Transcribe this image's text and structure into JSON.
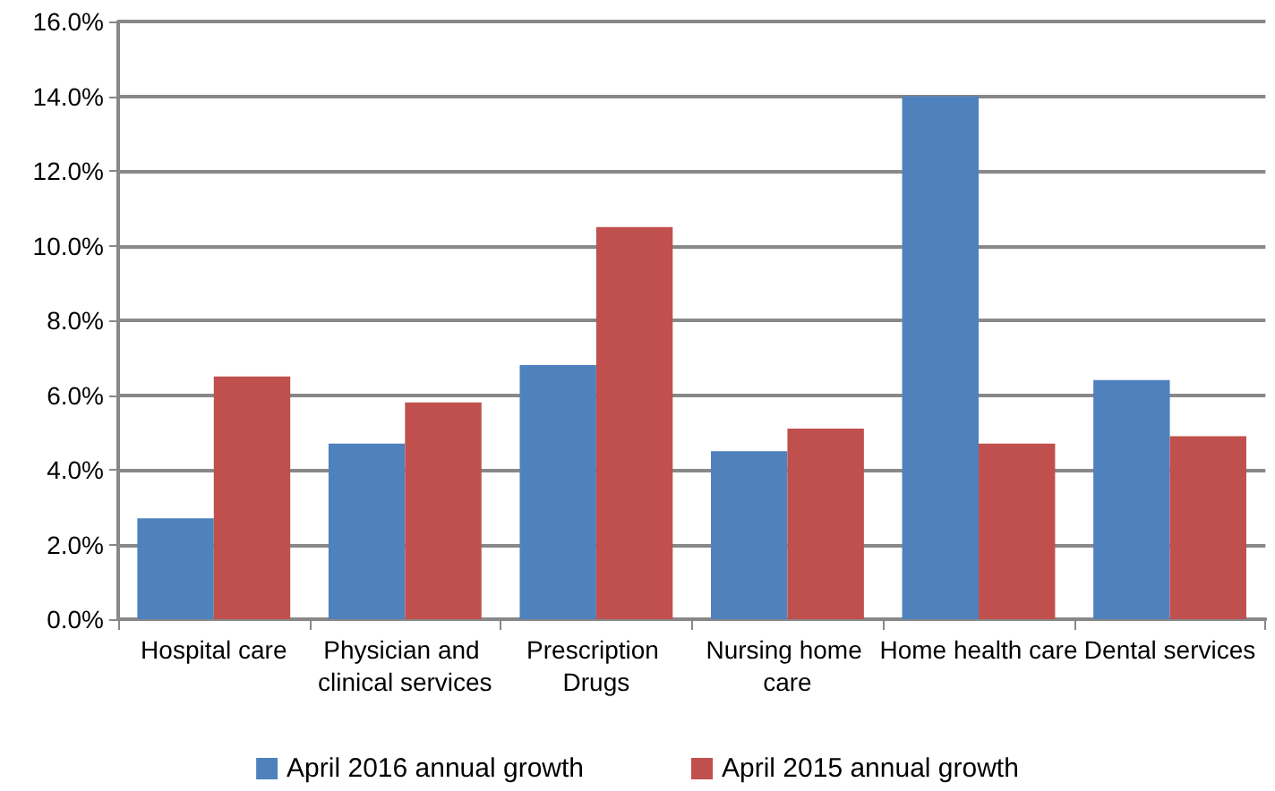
{
  "chart_data": {
    "type": "bar",
    "categories": [
      "Hospital care",
      "Physician and clinical services",
      "Prescription Drugs",
      "Nursing home care",
      "Home health care",
      "Dental services"
    ],
    "series": [
      {
        "name": "April 2016 annual growth",
        "color": "#4f81bd",
        "values": [
          2.7,
          4.7,
          6.8,
          4.5,
          14.0,
          6.4
        ]
      },
      {
        "name": "April 2015 annual growth",
        "color": "#c0504d",
        "values": [
          6.5,
          5.8,
          10.5,
          5.1,
          4.7,
          4.9
        ]
      }
    ],
    "ylim": [
      0,
      16
    ],
    "yticks": [
      {
        "value": 0,
        "label": "0.0%"
      },
      {
        "value": 2,
        "label": "2.0%"
      },
      {
        "value": 4,
        "label": "4.0%"
      },
      {
        "value": 6,
        "label": "6.0%"
      },
      {
        "value": 8,
        "label": "8.0%"
      },
      {
        "value": 10,
        "label": "10.0%"
      },
      {
        "value": 12,
        "label": "12.0%"
      },
      {
        "value": 14,
        "label": "14.0%"
      },
      {
        "value": 16,
        "label": "16.0%"
      }
    ],
    "grid": "y",
    "legend": "bottom"
  }
}
